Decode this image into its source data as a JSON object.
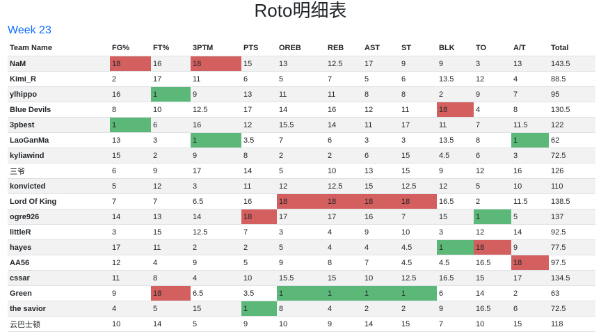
{
  "page": {
    "title": "Roto明细表",
    "week_label": "Week 23"
  },
  "colors": {
    "high": "#d35f5f",
    "low": "#5bb878",
    "link": "#0d6efd",
    "stripe": "#f2f2f2"
  },
  "table": {
    "headers": [
      "Team Name",
      "FG%",
      "FT%",
      "3PTM",
      "PTS",
      "OREB",
      "REB",
      "AST",
      "ST",
      "BLK",
      "TO",
      "A/T",
      "Total"
    ],
    "rows": [
      {
        "team": "NaM",
        "values": [
          "18",
          "16",
          "18",
          "15",
          "13",
          "12.5",
          "17",
          "9",
          "9",
          "3",
          "13",
          "143.5"
        ],
        "marks": {
          "0": "hi",
          "2": "hi"
        }
      },
      {
        "team": "Kimi_R",
        "values": [
          "2",
          "17",
          "11",
          "6",
          "5",
          "7",
          "5",
          "6",
          "13.5",
          "12",
          "4",
          "88.5"
        ],
        "marks": {}
      },
      {
        "team": "ylhippo",
        "values": [
          "16",
          "1",
          "9",
          "13",
          "11",
          "11",
          "8",
          "8",
          "2",
          "9",
          "7",
          "95"
        ],
        "marks": {
          "1": "lo"
        }
      },
      {
        "team": "Blue Devils",
        "values": [
          "8",
          "10",
          "12.5",
          "17",
          "14",
          "16",
          "12",
          "11",
          "18",
          "4",
          "8",
          "130.5"
        ],
        "marks": {
          "8": "hi"
        }
      },
      {
        "team": "3pbest",
        "values": [
          "1",
          "6",
          "16",
          "12",
          "15.5",
          "14",
          "11",
          "17",
          "11",
          "7",
          "11.5",
          "122"
        ],
        "marks": {
          "0": "lo"
        }
      },
      {
        "team": "LaoGanMa",
        "values": [
          "13",
          "3",
          "1",
          "3.5",
          "7",
          "6",
          "3",
          "3",
          "13.5",
          "8",
          "1",
          "62"
        ],
        "marks": {
          "2": "lo",
          "10": "lo"
        }
      },
      {
        "team": "kyliawind",
        "values": [
          "15",
          "2",
          "9",
          "8",
          "2",
          "2",
          "6",
          "15",
          "4.5",
          "6",
          "3",
          "72.5"
        ],
        "marks": {}
      },
      {
        "team": "三爷",
        "values": [
          "6",
          "9",
          "17",
          "14",
          "5",
          "10",
          "13",
          "15",
          "9",
          "12",
          "16",
          "126"
        ],
        "marks": {},
        "plain": true
      },
      {
        "team": "konvicted",
        "values": [
          "5",
          "12",
          "3",
          "11",
          "12",
          "12.5",
          "15",
          "12.5",
          "12",
          "5",
          "10",
          "110"
        ],
        "marks": {}
      },
      {
        "team": "Lord Of King",
        "values": [
          "7",
          "7",
          "6.5",
          "16",
          "18",
          "18",
          "18",
          "18",
          "16.5",
          "2",
          "11.5",
          "138.5"
        ],
        "marks": {
          "4": "hi",
          "5": "hi",
          "6": "hi",
          "7": "hi"
        }
      },
      {
        "team": "ogre926",
        "values": [
          "14",
          "13",
          "14",
          "18",
          "17",
          "17",
          "16",
          "7",
          "15",
          "1",
          "5",
          "137"
        ],
        "marks": {
          "3": "hi",
          "9": "lo"
        }
      },
      {
        "team": "littleR",
        "values": [
          "3",
          "15",
          "12.5",
          "7",
          "3",
          "4",
          "9",
          "10",
          "3",
          "12",
          "14",
          "92.5"
        ],
        "marks": {}
      },
      {
        "team": "hayes",
        "values": [
          "17",
          "11",
          "2",
          "2",
          "5",
          "4",
          "4",
          "4.5",
          "1",
          "18",
          "9",
          "77.5"
        ],
        "marks": {
          "8": "lo",
          "9": "hi"
        }
      },
      {
        "team": "AA56",
        "values": [
          "12",
          "4",
          "9",
          "5",
          "9",
          "8",
          "7",
          "4.5",
          "4.5",
          "16.5",
          "18",
          "97.5"
        ],
        "marks": {
          "10": "hi"
        }
      },
      {
        "team": "cssar",
        "values": [
          "11",
          "8",
          "4",
          "10",
          "15.5",
          "15",
          "10",
          "12.5",
          "16.5",
          "15",
          "17",
          "134.5"
        ],
        "marks": {}
      },
      {
        "team": "Green",
        "values": [
          "9",
          "18",
          "6.5",
          "3.5",
          "1",
          "1",
          "1",
          "1",
          "6",
          "14",
          "2",
          "63"
        ],
        "marks": {
          "1": "hi",
          "4": "lo",
          "5": "lo",
          "6": "lo",
          "7": "lo"
        }
      },
      {
        "team": "the savior",
        "values": [
          "4",
          "5",
          "15",
          "1",
          "8",
          "4",
          "2",
          "2",
          "9",
          "16.5",
          "6",
          "72.5"
        ],
        "marks": {
          "3": "lo"
        }
      },
      {
        "team": "云巴士顿",
        "values": [
          "10",
          "14",
          "5",
          "9",
          "10",
          "9",
          "14",
          "15",
          "7",
          "10",
          "15",
          "118"
        ],
        "marks": {},
        "plain": true
      }
    ]
  }
}
